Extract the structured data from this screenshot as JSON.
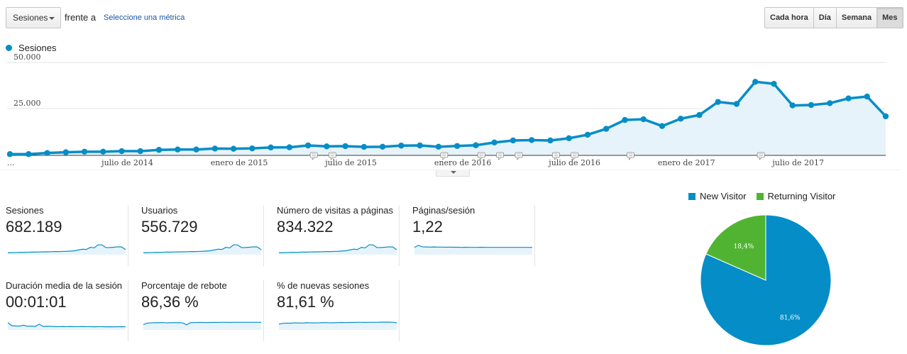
{
  "toolbar": {
    "metric_select": "Sesiones",
    "vs_label": "frente a",
    "select_metric_link": "Seleccione una métrica",
    "granularity": [
      "Cada hora",
      "Día",
      "Semana",
      "Mes"
    ],
    "granularity_active": "Mes"
  },
  "colors": {
    "series": "#058dc7",
    "new_visitor": "#058dc7",
    "returning_visitor": "#50b432"
  },
  "chart_data": [
    {
      "type": "area",
      "series": [
        {
          "name": "Sesiones",
          "values": [
            300,
            300,
            900,
            1300,
            1600,
            1600,
            1900,
            1900,
            2600,
            2800,
            2800,
            3300,
            3200,
            3400,
            3900,
            4000,
            5000,
            4500,
            4600,
            4200,
            4300,
            4900,
            5000,
            4300,
            4700,
            5100,
            6600,
            7700,
            7900,
            7700,
            8900,
            10800,
            14000,
            18800,
            19200,
            15500,
            19500,
            21500,
            28600,
            27500,
            39500,
            38400,
            26700,
            26900,
            27900,
            30500,
            31500,
            20800
          ]
        }
      ],
      "ylim": [
        0,
        55000
      ],
      "yticks": [
        "25.000",
        "50.000"
      ],
      "ytick_values": [
        25000,
        50000
      ],
      "xtick_labels": [
        "...",
        "julio de 2014",
        "enero de 2015",
        "julio de 2015",
        "enero de 2016",
        "julio de 2016",
        "enero de 2017",
        "julio de 2017"
      ],
      "xtick_index": [
        0,
        6,
        12,
        18,
        24,
        30,
        36,
        42
      ],
      "annotation_index": [
        16,
        17,
        23,
        25,
        26,
        27,
        29,
        30,
        33,
        40
      ],
      "grid": true,
      "legend": "top-left"
    },
    {
      "type": "pie",
      "categories": [
        "New Visitor",
        "Returning Visitor"
      ],
      "values": [
        81.6,
        18.4
      ],
      "labels": [
        "81,6%",
        "18,4%"
      ],
      "legend": "top"
    }
  ],
  "metrics": [
    {
      "label": "Sesiones",
      "value": "682.189",
      "spark": [
        1,
        1,
        1.1,
        1.2,
        1.2,
        1.3,
        1.4,
        1.4,
        1.5,
        1.6,
        1.6,
        1.7,
        1.8,
        1.8,
        1.9,
        2,
        2.2,
        2.4,
        3,
        3.6,
        3.4,
        5,
        4.6,
        7,
        6.8,
        4.8,
        4.9,
        5.1,
        5.4,
        5.3,
        3.2
      ]
    },
    {
      "label": "Usuarios",
      "value": "556.729",
      "spark": [
        1,
        1,
        1.1,
        1.2,
        1.2,
        1.3,
        1.4,
        1.4,
        1.5,
        1.6,
        1.6,
        1.7,
        1.8,
        1.8,
        1.9,
        2,
        2.2,
        2.4,
        3,
        3.6,
        3.4,
        5,
        4.6,
        7,
        6.8,
        4.8,
        4.9,
        5.1,
        5.4,
        5.3,
        3.2
      ]
    },
    {
      "label": "Número de visitas a páginas",
      "value": "834.322",
      "spark": [
        1,
        1,
        1.1,
        1.2,
        1.2,
        1.3,
        1.4,
        1.4,
        1.5,
        1.6,
        1.6,
        1.7,
        1.8,
        1.8,
        1.9,
        2,
        2.2,
        2.4,
        3,
        3.6,
        3.4,
        5,
        4.6,
        7,
        6.8,
        4.8,
        4.9,
        5.1,
        5.4,
        5.3,
        3.2
      ]
    },
    {
      "label": "Páginas/sesión",
      "value": "1,22",
      "spark": [
        5,
        6.5,
        5.4,
        5.3,
        5.2,
        5.3,
        5.2,
        5.2,
        5.1,
        5.2,
        5.1,
        5.1,
        5,
        5.1,
        5,
        5,
        5,
        5.1,
        5,
        5,
        5,
        5,
        5,
        5,
        5,
        5,
        5,
        5,
        5,
        5,
        5
      ]
    },
    {
      "label": "Duración media de la sesión",
      "value": "00:01:01",
      "spark": [
        5,
        2.6,
        2.4,
        2.3,
        3,
        2.2,
        2.3,
        2.1,
        3.8,
        2,
        2.2,
        2.1,
        2,
        1.9,
        2,
        1.9,
        2,
        1.9,
        1.9,
        2,
        1.9,
        1.9,
        1.8,
        1.9,
        1.9,
        1.8,
        1.8,
        1.8,
        1.9,
        1.8,
        1.9
      ]
    },
    {
      "label": "Porcentaje de rebote",
      "value": "86,36 %",
      "spark": [
        3.5,
        4.6,
        4.8,
        4.9,
        4.9,
        5,
        4.8,
        4.9,
        5,
        4.9,
        4.8,
        3.3,
        4.9,
        5,
        5.1,
        5.1,
        5,
        5.1,
        5.1,
        5.1,
        5.2,
        5.2,
        5.1,
        5.2,
        5.2,
        5.2,
        5.2,
        5.2,
        5.2,
        5.2,
        5.2
      ]
    },
    {
      "label": "% de nuevas sesiones",
      "value": "81,61 %",
      "spark": [
        3.8,
        4.4,
        4.6,
        4.5,
        4.8,
        4.7,
        4.6,
        4.9,
        4.8,
        4.7,
        4.8,
        4.9,
        5,
        4.8,
        4.9,
        5,
        5.1,
        5,
        5.1,
        5.1,
        5.2,
        5.2,
        5.1,
        5.2,
        5.2,
        5.2,
        5.3,
        5.3,
        5.3,
        5.2,
        4.9
      ]
    }
  ]
}
